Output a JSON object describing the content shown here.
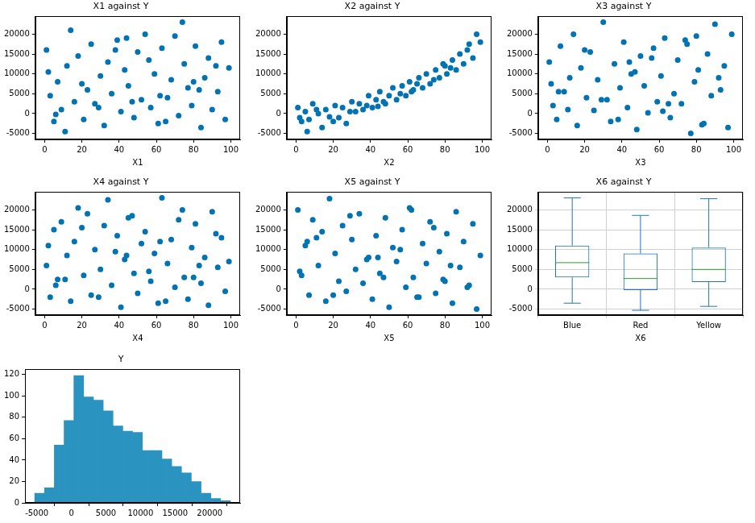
{
  "chart_data": [
    {
      "type": "scatter",
      "title": "X1 against Y",
      "x_label": "X1",
      "x": [
        1,
        3,
        5,
        7,
        9,
        12,
        14,
        16,
        18,
        21,
        23,
        25,
        27,
        30,
        32,
        34,
        36,
        39,
        41,
        43,
        45,
        48,
        50,
        52,
        54,
        57,
        59,
        61,
        63,
        66,
        68,
        70,
        72,
        75,
        77,
        79,
        81,
        84,
        86,
        88,
        90,
        93,
        95,
        97,
        99,
        2,
        11,
        20,
        29,
        38,
        47,
        56,
        65,
        74,
        83,
        92,
        6,
        44,
        62,
        80
      ],
      "values": [
        16000,
        4500,
        -2000,
        8000,
        1000,
        12000,
        21000,
        3000,
        14500,
        -1500,
        6000,
        17500,
        2500,
        9500,
        -3000,
        13000,
        5000,
        18500,
        500,
        11000,
        7000,
        -1000,
        15500,
        3500,
        20000,
        1500,
        10000,
        -2500,
        16500,
        4000,
        8500,
        19500,
        -500,
        12500,
        6500,
        2000,
        17000,
        -3500,
        9000,
        14000,
        1000,
        5500,
        18000,
        -1500,
        11500,
        10500,
        -4500,
        7500,
        1500,
        16000,
        3000,
        13500,
        -2000,
        23000,
        6000,
        12000,
        -200,
        19000,
        4500,
        8000
      ],
      "xlim": [
        -5,
        105
      ],
      "xticks": [
        0,
        20,
        40,
        60,
        80,
        100
      ],
      "ylim": [
        -6500,
        24500
      ],
      "yticks": [
        -5000,
        0,
        5000,
        10000,
        15000,
        20000
      ],
      "color": "#0173b2",
      "grid": false
    },
    {
      "type": "scatter",
      "title": "X2 against Y",
      "x_label": "X2",
      "x": [
        1,
        3,
        5,
        7,
        9,
        12,
        14,
        16,
        18,
        21,
        23,
        25,
        27,
        30,
        32,
        34,
        36,
        39,
        41,
        43,
        45,
        48,
        50,
        52,
        54,
        57,
        59,
        61,
        63,
        66,
        68,
        70,
        72,
        75,
        77,
        79,
        81,
        84,
        86,
        88,
        90,
        93,
        95,
        97,
        99,
        2,
        11,
        20,
        29,
        38,
        47,
        56,
        65,
        74,
        83,
        92,
        6,
        44,
        62,
        80
      ],
      "values": [
        1500,
        -2000,
        500,
        -1500,
        2500,
        0,
        -3500,
        1000,
        -800,
        2000,
        -1000,
        1500,
        -2500,
        3000,
        500,
        2500,
        1000,
        4500,
        1500,
        3500,
        5500,
        2500,
        4500,
        6500,
        3500,
        7000,
        4500,
        8000,
        6000,
        9000,
        6500,
        10000,
        7500,
        11000,
        9000,
        12500,
        10000,
        13500,
        11000,
        15000,
        12500,
        17500,
        14000,
        20000,
        18000,
        -1000,
        1000,
        -2000,
        500,
        2000,
        3000,
        5000,
        7500,
        8500,
        11500,
        16000,
        -4500,
        1800,
        5500,
        12000
      ],
      "xlim": [
        -5,
        105
      ],
      "xticks": [
        0,
        20,
        40,
        60,
        80,
        100
      ],
      "ylim": [
        -6500,
        24500
      ],
      "yticks": [
        -5000,
        0,
        5000,
        10000,
        15000,
        20000
      ],
      "color": "#0173b2",
      "grid": false
    },
    {
      "type": "scatter",
      "title": "X3 against Y",
      "x_label": "X3",
      "x": [
        1,
        3,
        5,
        7,
        9,
        12,
        14,
        16,
        18,
        21,
        23,
        25,
        27,
        30,
        32,
        34,
        36,
        39,
        41,
        43,
        45,
        48,
        50,
        52,
        54,
        57,
        59,
        61,
        63,
        66,
        68,
        70,
        72,
        75,
        77,
        79,
        81,
        84,
        86,
        88,
        90,
        93,
        95,
        97,
        99,
        2,
        11,
        20,
        29,
        38,
        47,
        56,
        65,
        74,
        83,
        92,
        6,
        44,
        62,
        80
      ],
      "values": [
        13000,
        2000,
        -1500,
        17000,
        5500,
        9000,
        20000,
        -3000,
        11500,
        4000,
        15500,
        800,
        8500,
        23000,
        3500,
        -2000,
        12500,
        6500,
        18000,
        1500,
        10000,
        -4000,
        14500,
        7000,
        200,
        16500,
        3000,
        9500,
        19000,
        -1000,
        5000,
        13500,
        2500,
        17500,
        -5000,
        8000,
        11000,
        -2500,
        15000,
        4500,
        22500,
        6000,
        12000,
        -3500,
        20000,
        7500,
        1000,
        16000,
        3500,
        -1500,
        10500,
        14000,
        2500,
        18500,
        -2800,
        9000,
        5500,
        13000,
        600,
        19500
      ],
      "xlim": [
        -5,
        105
      ],
      "xticks": [
        0,
        20,
        40,
        60,
        80,
        100
      ],
      "ylim": [
        -6500,
        24500
      ],
      "yticks": [
        -5000,
        0,
        5000,
        10000,
        15000,
        20000
      ],
      "color": "#0173b2",
      "grid": false
    },
    {
      "type": "scatter",
      "title": "X4 against Y",
      "x_label": "X4",
      "x": [
        1,
        3,
        5,
        7,
        9,
        12,
        14,
        16,
        18,
        21,
        23,
        25,
        27,
        30,
        32,
        34,
        36,
        39,
        41,
        43,
        45,
        48,
        50,
        52,
        54,
        57,
        59,
        61,
        63,
        66,
        68,
        70,
        72,
        75,
        77,
        79,
        81,
        84,
        86,
        88,
        90,
        93,
        95,
        97,
        99,
        2,
        11,
        20,
        29,
        38,
        47,
        56,
        65,
        74,
        83,
        92,
        6,
        44,
        62,
        80
      ],
      "values": [
        6000,
        -2000,
        15000,
        2500,
        17000,
        8500,
        -3000,
        12000,
        20500,
        3500,
        19000,
        -1500,
        10000,
        5000,
        16000,
        22500,
        1000,
        13500,
        -4500,
        7500,
        18000,
        4000,
        -1000,
        11500,
        14500,
        2000,
        9000,
        -3500,
        23000,
        6500,
        12500,
        500,
        17500,
        3000,
        -2500,
        10500,
        16500,
        1500,
        8000,
        -4000,
        19500,
        5500,
        13000,
        -500,
        7000,
        11000,
        2500,
        15500,
        -2000,
        9500,
        18500,
        4500,
        -3000,
        20000,
        6000,
        14000,
        1000,
        8500,
        12000,
        3000
      ],
      "xlim": [
        -5,
        105
      ],
      "xticks": [
        0,
        20,
        40,
        60,
        80,
        100
      ],
      "ylim": [
        -6500,
        24500
      ],
      "yticks": [
        -5000,
        0,
        5000,
        10000,
        15000,
        20000
      ],
      "color": "#0173b2",
      "grid": false
    },
    {
      "type": "scatter",
      "title": "X5 against Y",
      "x_label": "X5",
      "x": [
        1,
        3,
        5,
        7,
        9,
        12,
        14,
        16,
        18,
        21,
        23,
        25,
        27,
        30,
        32,
        34,
        36,
        39,
        41,
        43,
        45,
        48,
        50,
        52,
        54,
        57,
        59,
        61,
        63,
        66,
        68,
        70,
        72,
        75,
        77,
        79,
        81,
        84,
        86,
        88,
        90,
        93,
        95,
        97,
        99,
        2,
        11,
        20,
        29,
        38,
        47,
        56,
        65,
        74,
        83,
        92,
        6,
        44,
        62,
        80
      ],
      "values": [
        20000,
        3500,
        11000,
        -1500,
        17500,
        6000,
        14500,
        -3000,
        22800,
        9000,
        2000,
        16000,
        -500,
        12500,
        5000,
        19000,
        1500,
        8000,
        -2500,
        13500,
        4000,
        18000,
        -4500,
        10500,
        7000,
        15000,
        500,
        20500,
        3000,
        -2000,
        11500,
        6500,
        17000,
        -1000,
        9500,
        2500,
        14000,
        -3500,
        19500,
        5500,
        12000,
        1000,
        16500,
        -5000,
        8500,
        4500,
        13000,
        -1500,
        18500,
        7500,
        3000,
        10000,
        -2000,
        15500,
        6000,
        500,
        12000,
        8000,
        20000,
        2000
      ],
      "xlim": [
        -5,
        105
      ],
      "xticks": [
        0,
        20,
        40,
        60,
        80,
        100
      ],
      "ylim": [
        -6500,
        24500
      ],
      "yticks": [
        -5000,
        0,
        5000,
        10000,
        15000,
        20000
      ],
      "color": "#0173b2",
      "grid": false
    },
    {
      "type": "box",
      "title": "X6 against Y",
      "x_label": "X6",
      "categories": [
        "Blue",
        "Red",
        "Yellow"
      ],
      "whisker_low": [
        -3500,
        -5300,
        -4300
      ],
      "q1": [
        3000,
        -200,
        1800
      ],
      "median": [
        6700,
        2700,
        5000
      ],
      "q3": [
        11000,
        9000,
        10500
      ],
      "whisker_high": [
        23000,
        18600,
        22800
      ],
      "ylim": [
        -6500,
        24500
      ],
      "yticks": [
        -5000,
        0,
        5000,
        10000,
        15000,
        20000
      ],
      "color": "#1f77b4",
      "grid": true
    },
    {
      "type": "histogram",
      "title": "Y",
      "bins": [
        -5300,
        -3885,
        -2470,
        -1055,
        360,
        1775,
        3190,
        4605,
        6020,
        7435,
        8850,
        10265,
        11680,
        13095,
        14510,
        15925,
        17340,
        18755,
        20170,
        21585,
        23000
      ],
      "values": [
        9,
        14,
        54,
        77,
        119,
        99,
        96,
        86,
        72,
        67,
        66,
        49,
        49,
        41,
        34,
        28,
        20,
        9,
        4,
        2
      ],
      "xlim": [
        -6700,
        24400
      ],
      "xticks": [
        -5000,
        0,
        5000,
        10000,
        15000,
        20000
      ],
      "ylim": [
        0,
        125
      ],
      "yticks": [
        0,
        20,
        40,
        60,
        80,
        100,
        120
      ],
      "color": "#2a93bf",
      "grid": false
    }
  ]
}
